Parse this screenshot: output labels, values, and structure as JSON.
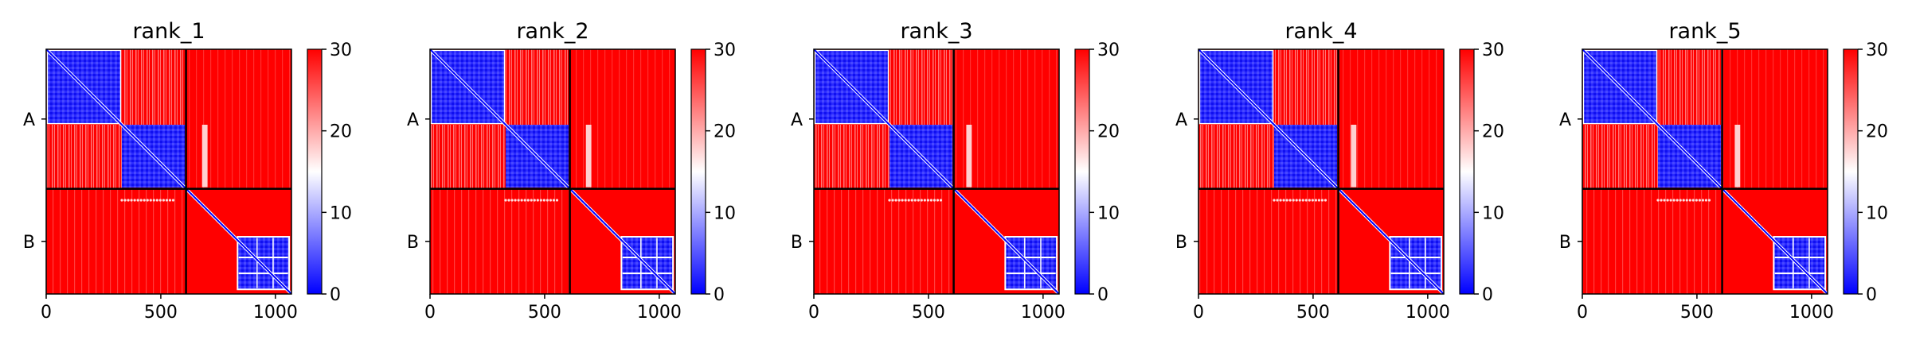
{
  "figure": {
    "background": "#ffffff"
  },
  "chart_data": [
    {
      "type": "heatmap",
      "title": "rank_1",
      "xlim": [
        0,
        1070
      ],
      "x_ticks": [
        0,
        500,
        1000
      ],
      "chain_boundary": 610,
      "chain_labels": [
        "A",
        "B"
      ],
      "colorbar": {
        "vmin": 0,
        "vmax": 30,
        "ticks": [
          0,
          10,
          20,
          30
        ],
        "colormap": "bwr"
      },
      "stripe_positions": [
        680,
        690
      ],
      "b_diag_dots_x": [
        330,
        560
      ]
    },
    {
      "type": "heatmap",
      "title": "rank_2",
      "xlim": [
        0,
        1070
      ],
      "x_ticks": [
        0,
        500,
        1000
      ],
      "chain_boundary": 610,
      "chain_labels": [
        "A",
        "B"
      ],
      "colorbar": {
        "vmin": 0,
        "vmax": 30,
        "ticks": [
          0,
          10,
          20,
          30
        ],
        "colormap": "bwr"
      },
      "stripe_positions": [
        680,
        690
      ],
      "b_diag_dots_x": [
        330,
        560
      ]
    },
    {
      "type": "heatmap",
      "title": "rank_3",
      "xlim": [
        0,
        1070
      ],
      "x_ticks": [
        0,
        500,
        1000
      ],
      "chain_boundary": 610,
      "chain_labels": [
        "A",
        "B"
      ],
      "colorbar": {
        "vmin": 0,
        "vmax": 30,
        "ticks": [
          0,
          10,
          20,
          30
        ],
        "colormap": "bwr"
      },
      "stripe_positions": [
        665,
        675
      ],
      "b_diag_dots_x": [
        330,
        560
      ]
    },
    {
      "type": "heatmap",
      "title": "rank_4",
      "xlim": [
        0,
        1070
      ],
      "x_ticks": [
        0,
        500,
        1000
      ],
      "chain_boundary": 610,
      "chain_labels": [
        "A",
        "B"
      ],
      "colorbar": {
        "vmin": 0,
        "vmax": 30,
        "ticks": [
          0,
          10,
          20,
          30
        ],
        "colormap": "bwr"
      },
      "stripe_positions": [
        665,
        675
      ],
      "b_diag_dots_x": [
        330,
        560
      ]
    },
    {
      "type": "heatmap",
      "title": "rank_5",
      "xlim": [
        0,
        1070
      ],
      "x_ticks": [
        0,
        500,
        1000
      ],
      "chain_boundary": 610,
      "chain_labels": [
        "A",
        "B"
      ],
      "colorbar": {
        "vmin": 0,
        "vmax": 30,
        "ticks": [
          0,
          10,
          20,
          30
        ],
        "colormap": "bwr"
      },
      "stripe_positions": [
        665,
        675
      ],
      "b_diag_dots_x": [
        330,
        560
      ]
    }
  ]
}
